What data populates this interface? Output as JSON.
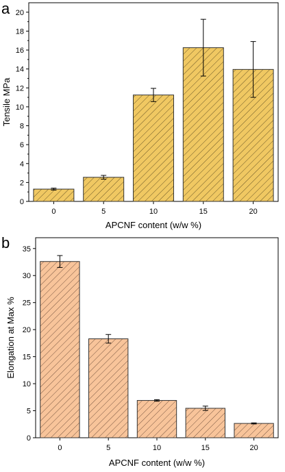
{
  "chart_data": [
    {
      "type": "bar",
      "panel_label": "a",
      "categories": [
        "0",
        "5",
        "10",
        "15",
        "20"
      ],
      "values": [
        1.3,
        2.55,
        11.25,
        16.25,
        13.95
      ],
      "errors": [
        0.1,
        0.2,
        0.7,
        3.0,
        2.95
      ],
      "xlabel": "APCNF content (w/w %)",
      "ylabel": "Tensile MPa",
      "ylim": [
        0,
        21
      ],
      "yticks": [
        0,
        2,
        4,
        6,
        8,
        10,
        12,
        14,
        16,
        18,
        20
      ],
      "bar_fill": "#f0c862",
      "bar_stroke": "#333333",
      "hatch": "diagonal",
      "grid": false,
      "legend": "none"
    },
    {
      "type": "bar",
      "panel_label": "b",
      "categories": [
        "0",
        "5",
        "10",
        "15",
        "20"
      ],
      "values": [
        32.6,
        18.3,
        6.9,
        5.45,
        2.65
      ],
      "errors": [
        1.1,
        0.8,
        0.15,
        0.4,
        0.1
      ],
      "xlabel": "APCNF content (w/w %)",
      "ylabel": "Elongation at Max %",
      "ylim": [
        0,
        37
      ],
      "yticks": [
        0,
        5,
        10,
        15,
        20,
        25,
        30,
        35
      ],
      "bar_fill": "#f8c49a",
      "bar_stroke": "#333333",
      "hatch": "diagonal",
      "grid": false,
      "legend": "none"
    }
  ]
}
